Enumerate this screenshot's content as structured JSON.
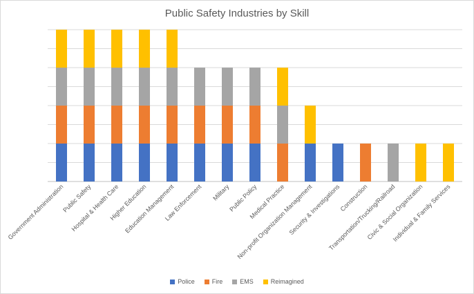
{
  "chart_data": {
    "type": "bar",
    "stacked": true,
    "title": "Public Safety Industries by Skill",
    "xlabel": "",
    "ylabel": "",
    "ylim": [
      0,
      8
    ],
    "grid": true,
    "legend_position": "bottom",
    "categories": [
      "Government Administration",
      "Public Safety",
      "Hospital & Health Care",
      "Higher Education",
      "Education Management",
      "Law Enforcement",
      "Military",
      "Public Policy",
      "Medical Practice",
      "Non-profit Organization Management",
      "Security & Investigations",
      "Construction",
      "Transportation/Trucking/Railroad",
      "Civic & Social Organization",
      "Individual & Family Services"
    ],
    "series": [
      {
        "name": "Police",
        "color": "#4472C4",
        "values": [
          2,
          2,
          2,
          2,
          2,
          2,
          2,
          2,
          0,
          2,
          2,
          0,
          0,
          0,
          0
        ]
      },
      {
        "name": "Fire",
        "color": "#ED7D31",
        "values": [
          2,
          2,
          2,
          2,
          2,
          2,
          2,
          2,
          2,
          0,
          0,
          2,
          0,
          0,
          0
        ]
      },
      {
        "name": "EMS",
        "color": "#A5A5A5",
        "values": [
          2,
          2,
          2,
          2,
          2,
          2,
          2,
          2,
          2,
          0,
          0,
          0,
          2,
          0,
          0
        ]
      },
      {
        "name": "Reimagined",
        "color": "#FFC000",
        "values": [
          2,
          2,
          2,
          2,
          2,
          0,
          0,
          0,
          2,
          2,
          0,
          0,
          0,
          2,
          2
        ]
      }
    ]
  }
}
